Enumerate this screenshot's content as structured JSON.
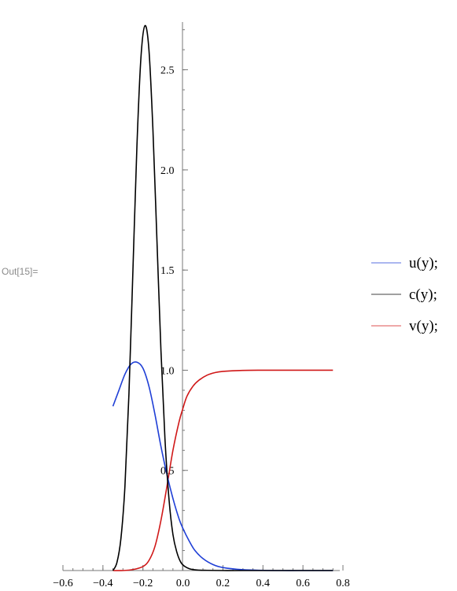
{
  "cell_label": "Out[15]=",
  "chart_data": {
    "type": "line",
    "xlim": [
      -0.6,
      0.8
    ],
    "ylim": [
      0,
      2.75
    ],
    "x_ticks": [
      {
        "value": -0.6,
        "label": "−0.6"
      },
      {
        "value": -0.4,
        "label": "−0.4"
      },
      {
        "value": -0.2,
        "label": "−0.2"
      },
      {
        "value": 0.0,
        "label": "0.0"
      },
      {
        "value": 0.2,
        "label": "0.2"
      },
      {
        "value": 0.4,
        "label": "0.4"
      },
      {
        "value": 0.6,
        "label": "0.6"
      },
      {
        "value": 0.8,
        "label": "0.8"
      }
    ],
    "y_ticks": [
      {
        "value": 0.5,
        "label": "0.5"
      },
      {
        "value": 1.0,
        "label": "1.0"
      },
      {
        "value": 1.5,
        "label": "1.5"
      },
      {
        "value": 2.0,
        "label": "2.0"
      },
      {
        "value": 2.5,
        "label": "2.5"
      }
    ],
    "legend_position": "right",
    "series": [
      {
        "name": "u(y);",
        "color": "#1f3fd6",
        "x": [
          -0.35,
          -0.32,
          -0.29,
          -0.26,
          -0.23,
          -0.2,
          -0.17,
          -0.14,
          -0.11,
          -0.08,
          -0.05,
          -0.02,
          0.0,
          0.03,
          0.06,
          0.1,
          0.15,
          0.2,
          0.3,
          0.4,
          0.5,
          0.6,
          0.75
        ],
        "y": [
          0.82,
          0.9,
          0.98,
          1.03,
          1.04,
          1.01,
          0.92,
          0.78,
          0.62,
          0.48,
          0.36,
          0.26,
          0.21,
          0.15,
          0.1,
          0.06,
          0.03,
          0.015,
          0.004,
          0.001,
          0.0,
          0.0,
          0.0
        ]
      },
      {
        "name": "c(y);",
        "color": "#000000",
        "x": [
          -0.35,
          -0.33,
          -0.31,
          -0.29,
          -0.27,
          -0.25,
          -0.23,
          -0.21,
          -0.19,
          -0.17,
          -0.15,
          -0.13,
          -0.11,
          -0.09,
          -0.07,
          -0.05,
          -0.03,
          -0.01,
          0.01,
          0.03,
          0.05,
          0.08,
          0.12,
          0.2,
          0.3,
          0.5,
          0.75
        ],
        "y": [
          0.0,
          0.04,
          0.16,
          0.42,
          0.88,
          1.5,
          2.12,
          2.56,
          2.72,
          2.6,
          2.2,
          1.65,
          1.1,
          0.66,
          0.36,
          0.18,
          0.09,
          0.04,
          0.02,
          0.01,
          0.005,
          0.002,
          0.001,
          0.0,
          0.0,
          0.0,
          0.0
        ]
      },
      {
        "name": "v(y);",
        "color": "#d01818",
        "x": [
          -0.35,
          -0.3,
          -0.25,
          -0.2,
          -0.17,
          -0.14,
          -0.11,
          -0.08,
          -0.05,
          -0.02,
          0.0,
          0.02,
          0.05,
          0.08,
          0.12,
          0.16,
          0.2,
          0.3,
          0.4,
          0.5,
          0.6,
          0.75
        ],
        "y": [
          0.0,
          0.0,
          0.005,
          0.02,
          0.05,
          0.12,
          0.25,
          0.42,
          0.6,
          0.74,
          0.81,
          0.87,
          0.92,
          0.95,
          0.975,
          0.988,
          0.994,
          0.999,
          1.0,
          1.0,
          1.0,
          1.0
        ]
      }
    ]
  }
}
